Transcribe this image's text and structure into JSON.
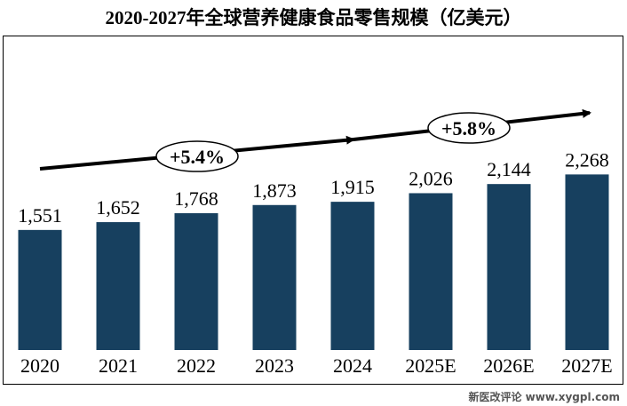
{
  "title": "2020-2027年全球营养健康食品零售规模（亿美元）",
  "footer": "新医改评论 www.xygpl.com",
  "colors": {
    "bar": "#17405f",
    "arrow": "#000000"
  },
  "chart_data": {
    "type": "bar",
    "title": "2020-2027年全球营养健康食品零售规模（亿美元）",
    "categories": [
      "2020",
      "2021",
      "2022",
      "2023",
      "2024",
      "2025E",
      "2026E",
      "2027E"
    ],
    "values": [
      1551,
      1652,
      1768,
      1873,
      1915,
      2026,
      2144,
      2268
    ],
    "value_labels": [
      "1,551",
      "1,652",
      "1,768",
      "1,873",
      "1,915",
      "2,026",
      "2,144",
      "2,268"
    ],
    "annotations": [
      {
        "text": "+5.4%",
        "from": "2020",
        "to": "2024"
      },
      {
        "text": "+5.8%",
        "from": "2024",
        "to": "2027E"
      }
    ],
    "grid": false
  }
}
